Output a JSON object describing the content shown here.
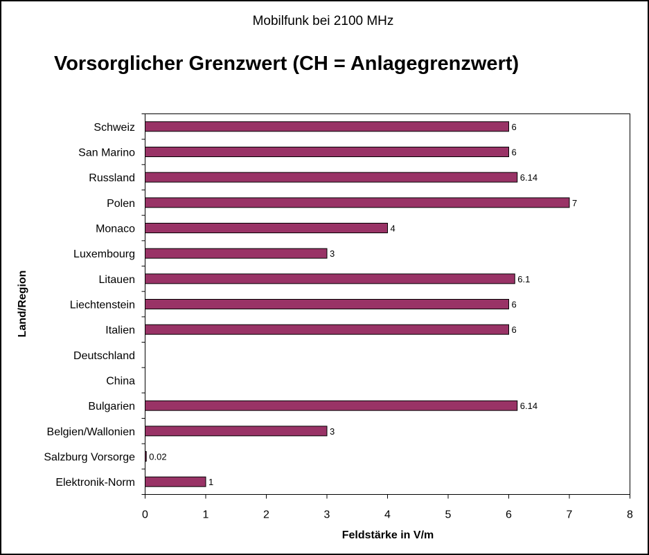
{
  "chart_data": {
    "type": "bar",
    "orientation": "horizontal",
    "title": "Vorsorglicher Grenzwert (CH = Anlagegrenzwert)",
    "subtitle": "Mobilfunk bei 2100 MHz",
    "xlabel": "Feldstärke in V/m",
    "ylabel": "Land/Region",
    "xlim": [
      0,
      8
    ],
    "xticks": [
      "0",
      "1",
      "2",
      "3",
      "4",
      "5",
      "6",
      "7",
      "8"
    ],
    "grid": false,
    "bar_color": "#993366",
    "categories": [
      "Schweiz",
      "San Marino",
      "Russland",
      "Polen",
      "Monaco",
      "Luxembourg",
      "Litauen",
      "Liechtenstein",
      "Italien",
      "Deutschland",
      "China",
      "Bulgarien",
      "Belgien/Wallonien",
      "Salzburg Vorsorge",
      "Elektronik-Norm"
    ],
    "values": [
      6,
      6,
      6.14,
      7,
      4,
      3,
      6.1,
      6,
      6,
      null,
      null,
      6.14,
      3,
      0.02,
      1
    ],
    "data_labels": [
      "6",
      "6",
      "6.14",
      "7",
      "4",
      "3",
      "6.1",
      "6",
      "6",
      "",
      "",
      "6.14",
      "3",
      "0.02",
      "1"
    ]
  }
}
